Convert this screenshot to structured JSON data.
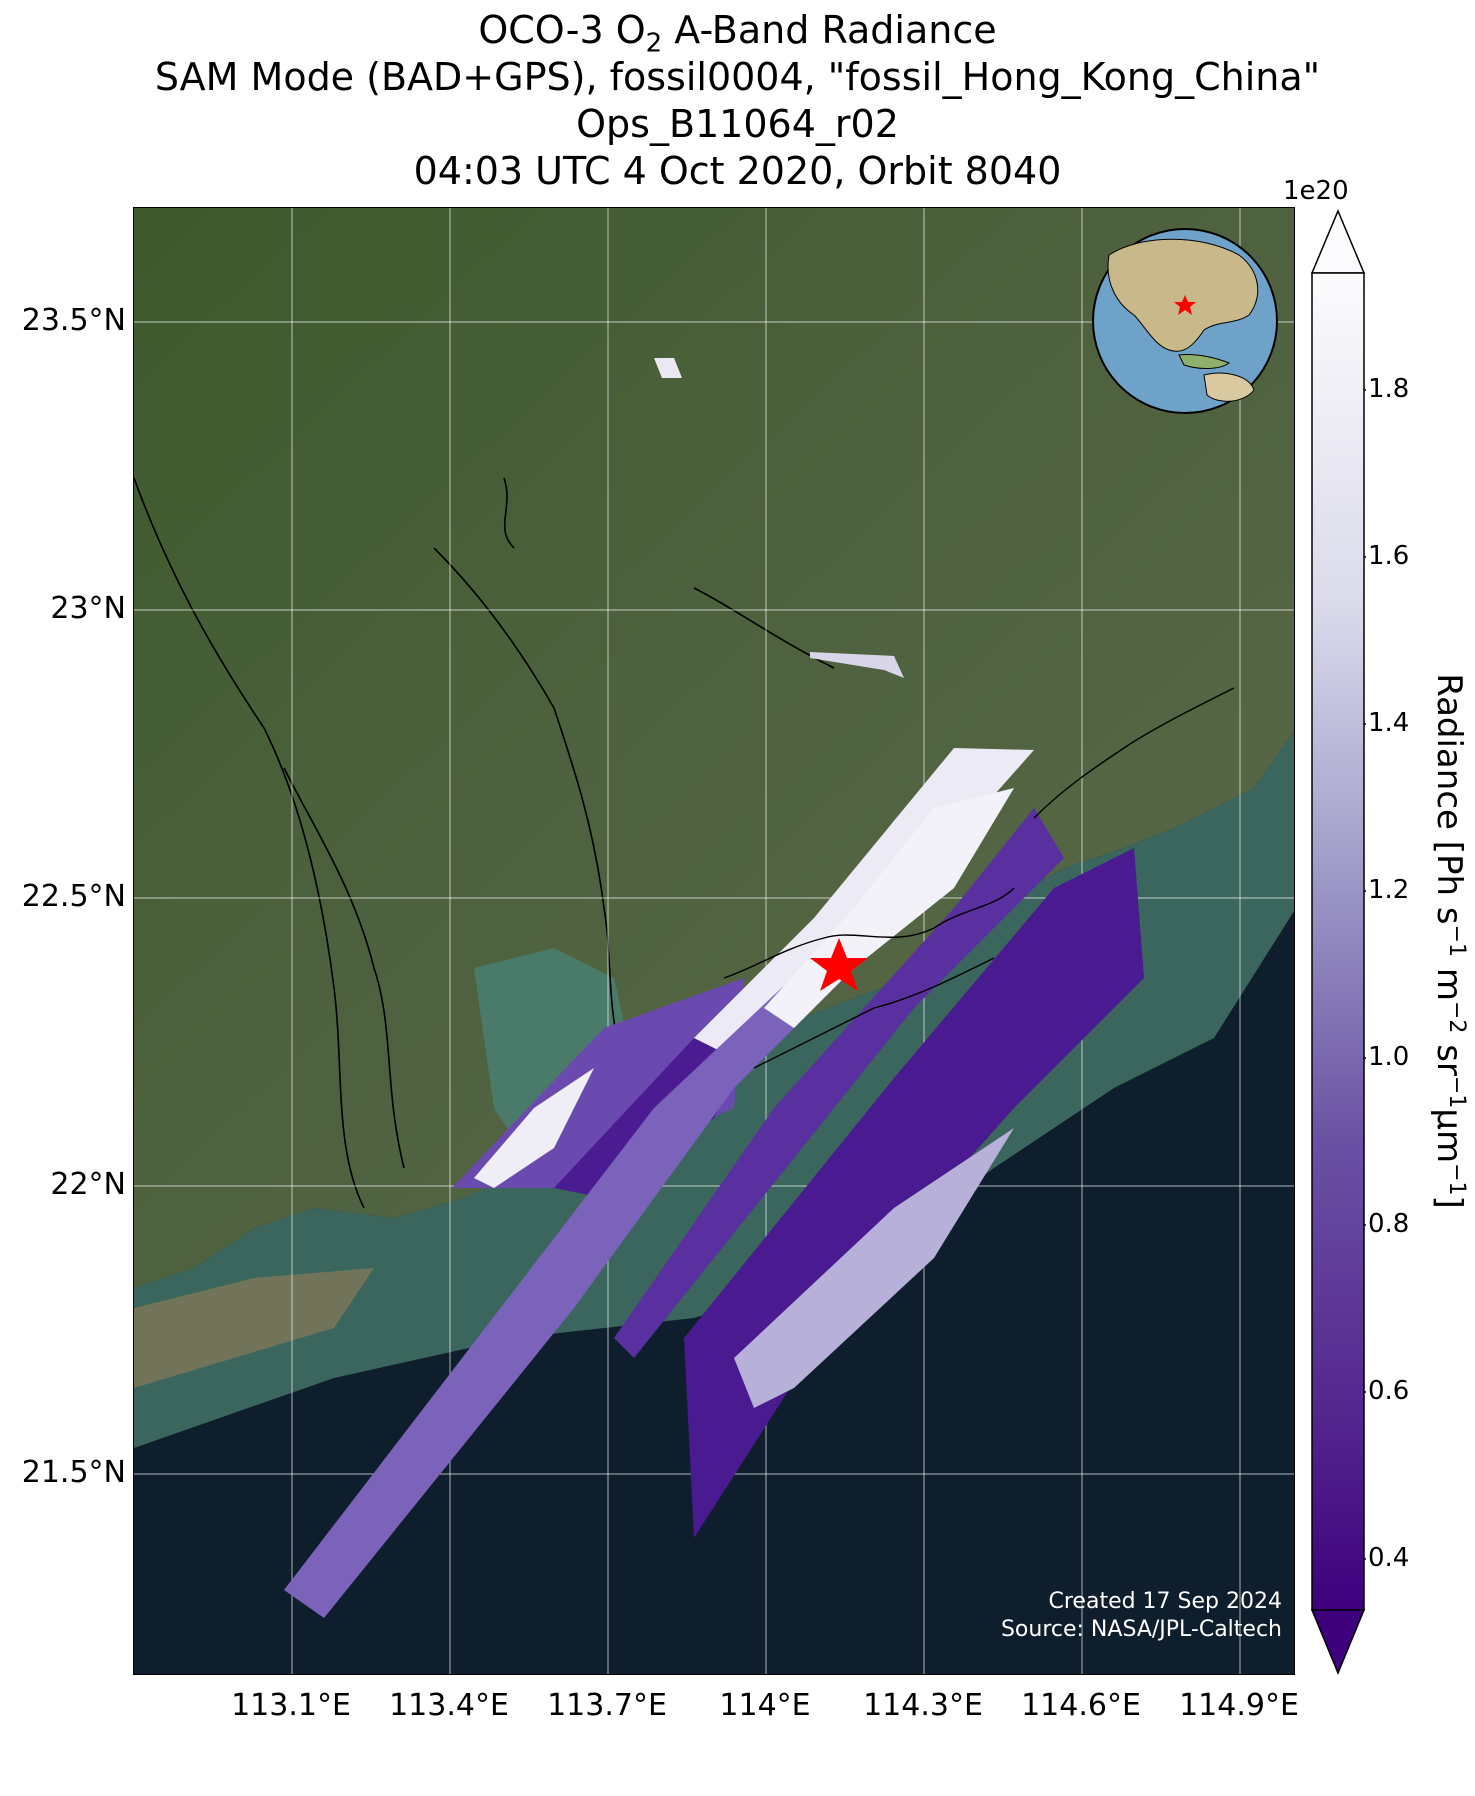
{
  "title": {
    "line1_prefix": "OCO-3 O",
    "line1_sub": "2",
    "line1_suffix": " A-Band Radiance",
    "line2": "SAM Mode (BAD+GPS), fossil0004, \"fossil_Hong_Kong_China\"",
    "line3": "Ops_B11064_r02",
    "line4": "04:03 UTC 4 Oct 2020, Orbit 8040"
  },
  "map": {
    "lat_ticks": [
      "23.5°N",
      "23°N",
      "22.5°N",
      "22°N",
      "21.5°N"
    ],
    "lon_ticks": [
      "113.1°E",
      "113.4°E",
      "113.7°E",
      "114°E",
      "114.3°E",
      "114.6°E",
      "114.9°E"
    ],
    "target_marker": "star",
    "target_color": "#ff0000",
    "basemap": "satellite imagery",
    "grid": true,
    "inset": "globe-locator"
  },
  "credit": {
    "created": "Created 17 Sep 2024",
    "source": "Source: NASA/JPL-Caltech"
  },
  "colorbar": {
    "exponent": "1e20",
    "ticks": [
      "1.8",
      "1.6",
      "1.4",
      "1.2",
      "1.0",
      "0.8",
      "0.6",
      "0.4"
    ],
    "label_prefix": "Radiance [Ph s",
    "label_parts": [
      "−1",
      " m",
      "−2",
      " sr",
      "−1",
      "μm",
      "−1",
      "]"
    ],
    "colormap": "Purples_r",
    "extend": "both",
    "colors": {
      "low": "#3f007d",
      "mid": "#8a7ec0",
      "high": "#fcfbfd"
    }
  }
}
